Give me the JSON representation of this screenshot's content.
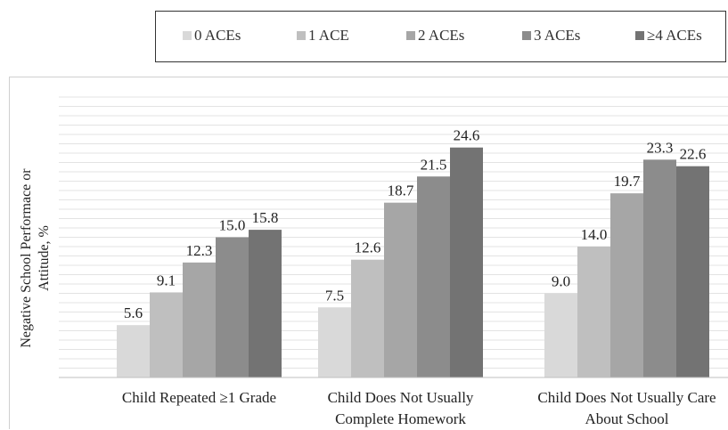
{
  "chart_data": {
    "type": "bar",
    "categories": [
      "Child Repeated ≥1 Grade",
      "Child Does Not Usually Complete Homework",
      "Child Does Not Usually Care About School"
    ],
    "category_lines": [
      [
        "Child Repeated ≥1 Grade"
      ],
      [
        "Child Does Not Usually",
        "Complete Homework"
      ],
      [
        "Child Does Not Usually Care",
        "About School"
      ]
    ],
    "series": [
      {
        "name": "0 ACEs",
        "color": "#d9d9d9",
        "values": [
          5.6,
          7.5,
          9.0
        ]
      },
      {
        "name": "1 ACE",
        "color": "#bfbfbf",
        "values": [
          9.1,
          12.6,
          14.0
        ]
      },
      {
        "name": "2 ACEs",
        "color": "#a6a6a6",
        "values": [
          12.3,
          18.7,
          19.7
        ]
      },
      {
        "name": "3 ACEs",
        "color": "#8c8c8c",
        "values": [
          15.0,
          21.5,
          23.3
        ]
      },
      {
        "name": "≥4 ACEs",
        "color": "#737373",
        "values": [
          15.8,
          24.6,
          22.6
        ]
      }
    ],
    "value_labels": [
      [
        "5.6",
        "7.5",
        "9.0"
      ],
      [
        "9.1",
        "12.6",
        "14.0"
      ],
      [
        "12.3",
        "18.7",
        "19.7"
      ],
      [
        "15.0",
        "21.5",
        "23.3"
      ],
      [
        "15.8",
        "24.6",
        "22.6"
      ]
    ],
    "ylabel": "Negative School Performace or Attitude, %",
    "ylim": [
      0,
      30
    ],
    "grid": true,
    "legend_position": "top"
  }
}
